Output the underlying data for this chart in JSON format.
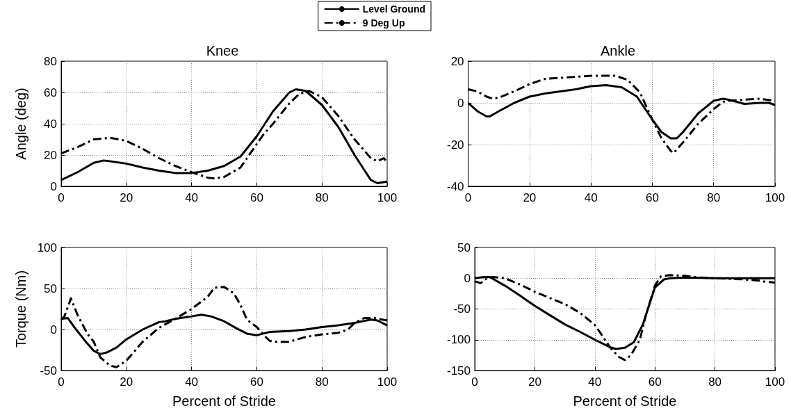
{
  "chart_data": [
    {
      "type": "line",
      "title": "Knee",
      "ylabel": "Angle (deg)",
      "xlim": [
        0,
        100
      ],
      "xticks": [
        0,
        20,
        40,
        60,
        80,
        100
      ],
      "ylim": [
        0,
        80
      ],
      "yticks": [
        0,
        20,
        40,
        60,
        80
      ],
      "grid": true,
      "legend": "top right",
      "marker": "none",
      "series": [
        {
          "name": "Level Ground",
          "color": "#000000",
          "line_style": "solid",
          "x": [
            0,
            5,
            10,
            13,
            15,
            20,
            25,
            30,
            35,
            40,
            45,
            50,
            55,
            60,
            65,
            70,
            72,
            75,
            80,
            85,
            90,
            95,
            97,
            100
          ],
          "values": [
            4,
            9,
            15,
            16.5,
            16,
            14.5,
            12,
            10,
            8.5,
            8.5,
            10,
            13,
            19,
            32,
            48,
            60,
            62,
            61,
            52,
            38,
            20,
            4,
            2,
            3
          ]
        },
        {
          "name": "9 Deg Up",
          "color": "#000000",
          "line_style": "dashed",
          "x": [
            0,
            5,
            10,
            15,
            20,
            25,
            30,
            35,
            40,
            45,
            47,
            50,
            55,
            60,
            62,
            65,
            70,
            73,
            76,
            80,
            85,
            90,
            95,
            97,
            99,
            100
          ],
          "values": [
            21,
            25,
            30,
            31,
            29,
            24,
            18,
            13,
            9,
            5.5,
            5,
            6,
            12,
            27,
            33,
            40,
            53,
            59,
            61,
            57,
            45,
            30,
            18,
            16,
            18,
            15
          ]
        }
      ]
    },
    {
      "type": "line",
      "title": "Ankle",
      "xlim": [
        0,
        100
      ],
      "xticks": [
        0,
        20,
        40,
        60,
        80,
        100
      ],
      "ylim": [
        -40,
        20
      ],
      "yticks": [
        -40,
        -20,
        0,
        20
      ],
      "grid": true,
      "marker": "none",
      "series": [
        {
          "color": "#000000",
          "line_style": "solid",
          "x": [
            0,
            3,
            6,
            7,
            10,
            15,
            20,
            25,
            30,
            35,
            40,
            45,
            50,
            55,
            60,
            63,
            66,
            68,
            70,
            75,
            80,
            83,
            85,
            90,
            95,
            98,
            100
          ],
          "values": [
            0,
            -4,
            -6.5,
            -6.5,
            -4,
            0,
            3,
            4.5,
            5.5,
            6.5,
            8,
            8.5,
            7.5,
            3,
            -8,
            -14,
            -17,
            -17,
            -14,
            -5,
            1,
            2,
            1.5,
            -0.5,
            0,
            0,
            -1
          ]
        },
        {
          "color": "#000000",
          "line_style": "dashed",
          "x": [
            0,
            3,
            6,
            8,
            10,
            15,
            20,
            25,
            30,
            35,
            40,
            45,
            48,
            52,
            56,
            60,
            63,
            66,
            67,
            70,
            75,
            80,
            83,
            85,
            90,
            95,
            100
          ],
          "values": [
            6.5,
            5.5,
            3,
            2,
            2.5,
            5.5,
            9,
            11.5,
            12,
            12.5,
            13,
            13,
            13,
            11,
            5,
            -8,
            -17,
            -23,
            -24,
            -19,
            -10,
            -3,
            0.5,
            1,
            1.5,
            2,
            1
          ]
        }
      ]
    },
    {
      "type": "line",
      "xlabel": "Percent of Stride",
      "ylabel": "Torque (Nm)",
      "xlim": [
        0,
        100
      ],
      "xticks": [
        0,
        20,
        40,
        60,
        80,
        100
      ],
      "ylim": [
        -50,
        100
      ],
      "yticks": [
        -50,
        0,
        50,
        100
      ],
      "grid": true,
      "marker": "none",
      "series": [
        {
          "color": "#000000",
          "line_style": "solid",
          "x": [
            0,
            2,
            4,
            8,
            10,
            12,
            14,
            17,
            20,
            25,
            30,
            32,
            35,
            40,
            43,
            46,
            50,
            54,
            57,
            60,
            62,
            64,
            70,
            75,
            80,
            85,
            90,
            95,
            97,
            100
          ],
          "values": [
            13,
            14,
            3,
            -17,
            -26,
            -30,
            -28,
            -22,
            -12,
            0,
            9,
            10,
            13,
            16,
            18,
            16,
            10,
            1,
            -5,
            -7,
            -5,
            -3,
            -2,
            0,
            3,
            5,
            8,
            12,
            11,
            5
          ]
        },
        {
          "color": "#000000",
          "line_style": "dashed",
          "x": [
            0,
            1,
            3,
            5,
            8,
            10,
            12,
            15,
            17,
            20,
            25,
            30,
            35,
            40,
            45,
            47,
            50,
            53,
            55,
            57,
            60,
            62,
            64,
            66,
            70,
            75,
            80,
            85,
            88,
            90,
            93,
            96,
            100
          ],
          "values": [
            12,
            16,
            38,
            18,
            -5,
            -15,
            -34,
            -44,
            -46,
            -38,
            -15,
            2,
            13,
            25,
            40,
            51,
            52,
            44,
            30,
            12,
            3,
            -6,
            -14,
            -15,
            -15,
            -9,
            -6,
            -4,
            0,
            8,
            14,
            14,
            11
          ]
        }
      ]
    },
    {
      "type": "line",
      "xlabel": "Percent of Stride",
      "xlim": [
        0,
        100
      ],
      "xticks": [
        0,
        20,
        40,
        60,
        80,
        100
      ],
      "ylim": [
        -150,
        50
      ],
      "yticks": [
        -150,
        -100,
        -50,
        0,
        50
      ],
      "grid": true,
      "marker": "none",
      "series": [
        {
          "color": "#000000",
          "line_style": "solid",
          "x": [
            0,
            3,
            5,
            10,
            15,
            20,
            25,
            30,
            35,
            40,
            45,
            47,
            50,
            53,
            56,
            58,
            60,
            63,
            65,
            70,
            80,
            90,
            100
          ],
          "values": [
            0,
            2,
            2,
            -12,
            -28,
            -45,
            -60,
            -75,
            -87,
            -100,
            -112,
            -115,
            -113,
            -104,
            -75,
            -45,
            -15,
            -2,
            0,
            1,
            0,
            0,
            0
          ]
        },
        {
          "color": "#000000",
          "line_style": "dashed",
          "x": [
            0,
            2,
            4,
            6,
            10,
            15,
            20,
            25,
            30,
            35,
            40,
            42,
            45,
            48,
            50,
            52,
            55,
            57,
            60,
            62,
            65,
            70,
            75,
            80,
            85,
            90,
            95,
            97,
            100
          ],
          "values": [
            -5,
            -8,
            0,
            2,
            0,
            -10,
            -22,
            -32,
            -42,
            -56,
            -76,
            -90,
            -112,
            -128,
            -133,
            -125,
            -100,
            -60,
            -12,
            3,
            5,
            4,
            1,
            0,
            -1,
            -2,
            -4,
            -6,
            -7
          ]
        }
      ]
    }
  ]
}
